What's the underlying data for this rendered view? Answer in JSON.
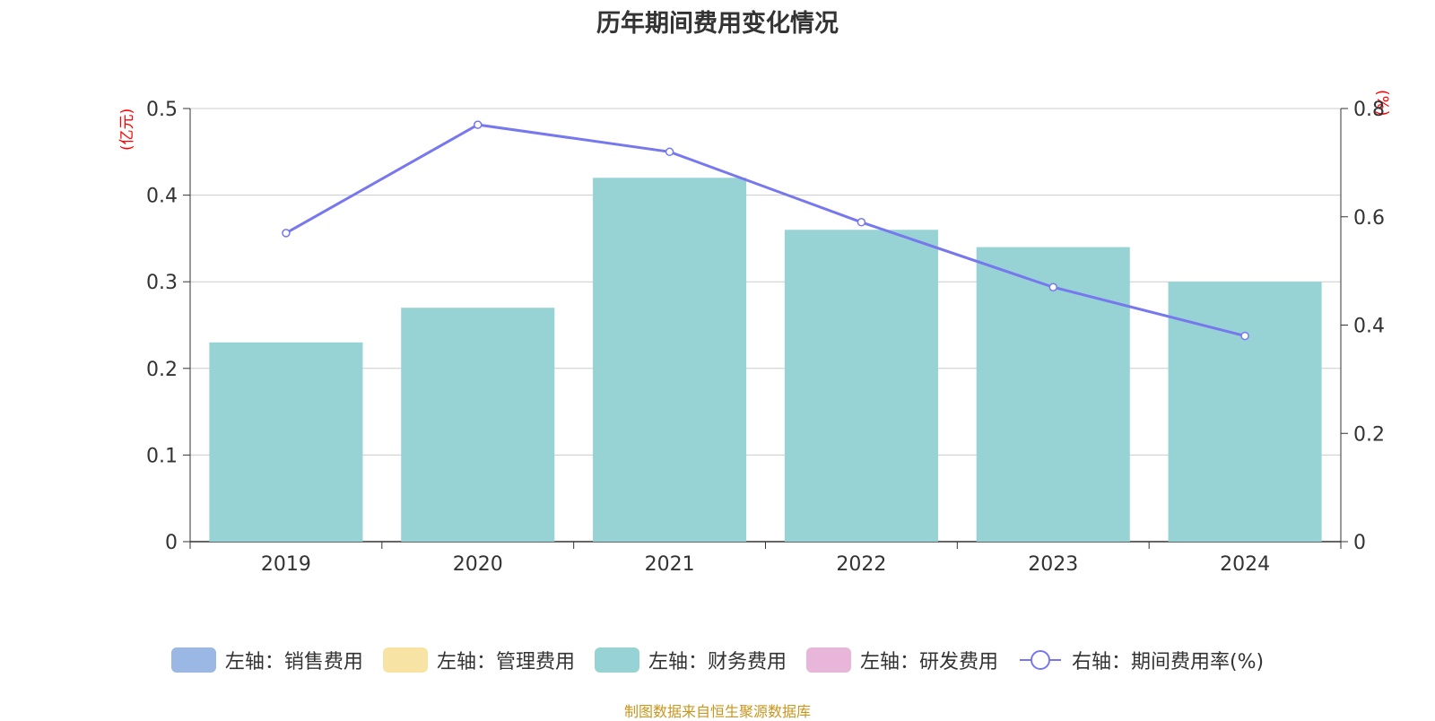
{
  "title": "历年期间费用变化情况",
  "units": {
    "left": "(亿元)",
    "right": "(%)"
  },
  "source": "制图数据来自恒生聚源数据库",
  "legend": [
    {
      "label": "左轴：销售费用",
      "color": "#9bb7e3",
      "kind": "bar"
    },
    {
      "label": "左轴：管理费用",
      "color": "#f7e3a3",
      "kind": "bar"
    },
    {
      "label": "左轴：财务费用",
      "color": "#97d3d5",
      "kind": "bar"
    },
    {
      "label": "左轴：研发费用",
      "color": "#e8b6d8",
      "kind": "bar"
    },
    {
      "label": "右轴：期间费用率(%)",
      "color": "#7777ee",
      "kind": "line"
    }
  ],
  "chart_data": {
    "type": "bar",
    "title": "历年期间费用变化情况",
    "categories": [
      "2019",
      "2020",
      "2021",
      "2022",
      "2023",
      "2024"
    ],
    "left_axis": {
      "ylim": [
        0,
        0.5
      ],
      "ticks": [
        "0",
        "0.1",
        "0.2",
        "0.3",
        "0.4",
        "0.5"
      ]
    },
    "right_axis": {
      "ylim": [
        0,
        0.8
      ],
      "ticks": [
        "0",
        "0.2",
        "0.4",
        "0.6",
        "0.8"
      ]
    },
    "series": [
      {
        "name": "左轴：财务费用",
        "type": "bar",
        "axis": "left",
        "color": "#97d3d5",
        "values": [
          0.23,
          0.27,
          0.42,
          0.36,
          0.34,
          0.3
        ]
      },
      {
        "name": "右轴：期间费用率(%)",
        "type": "line",
        "axis": "right",
        "color": "#7777ee",
        "values": [
          0.57,
          0.77,
          0.72,
          0.59,
          0.47,
          0.38
        ]
      }
    ],
    "grid": true,
    "legend_position": "bottom"
  }
}
